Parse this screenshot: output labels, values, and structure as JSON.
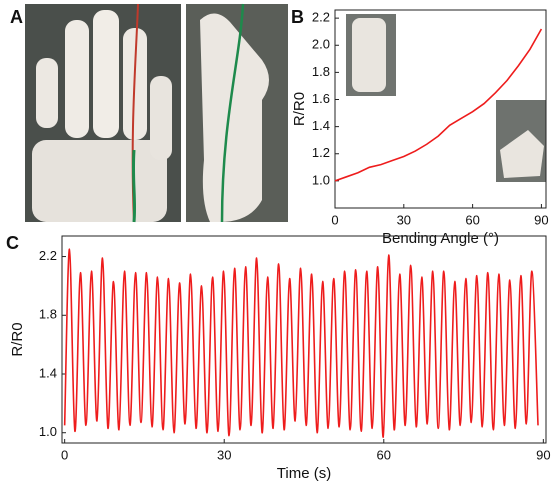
{
  "panel_labels": [
    "A",
    "B",
    "C"
  ],
  "chart_data": [
    {
      "type": "line",
      "x_label": "Bending Angle (°)",
      "y_label": "R/R0",
      "color": "#ee1c1c",
      "x": [
        0,
        5,
        10,
        15,
        20,
        25,
        30,
        35,
        40,
        45,
        50,
        55,
        60,
        65,
        70,
        75,
        80,
        85,
        90
      ],
      "values": [
        1.0,
        1.03,
        1.06,
        1.1,
        1.12,
        1.15,
        1.18,
        1.22,
        1.27,
        1.33,
        1.41,
        1.46,
        1.51,
        1.57,
        1.65,
        1.74,
        1.85,
        1.97,
        2.12
      ],
      "xlim": [
        0,
        92
      ],
      "xticks": [
        0,
        30,
        60,
        90
      ],
      "ylim": [
        0.8,
        2.26
      ],
      "yticks": [
        {
          "value": 1,
          "label": "1.0"
        },
        1.2,
        1.4,
        1.6,
        1.8,
        {
          "value": 2,
          "label": "2.0"
        },
        2.2
      ]
    },
    {
      "type": "line",
      "x_label": "Time (s)",
      "y_label": "R/R0",
      "color": "#ee1c1c",
      "x": [
        0,
        0.9,
        1.93,
        2.97,
        4.0,
        5.04,
        6.07,
        7.11,
        8.14,
        9.18,
        10.21,
        11.25,
        12.28,
        13.32,
        14.35,
        15.39,
        16.42,
        17.46,
        18.49,
        19.53,
        20.56,
        21.6,
        22.63,
        23.67,
        24.7,
        25.74,
        26.77,
        27.81,
        28.84,
        29.88,
        30.91,
        31.95,
        32.98,
        34.02,
        35.05,
        36.09,
        37.12,
        38.16,
        39.19,
        40.23,
        41.26,
        42.3,
        43.33,
        44.37,
        45.4,
        46.44,
        47.47,
        48.51,
        49.54,
        50.58,
        51.61,
        52.65,
        53.68,
        54.72,
        55.75,
        56.79,
        57.82,
        58.86,
        59.89,
        60.93,
        61.96,
        63.0,
        64.03,
        65.07,
        66.1,
        67.14,
        68.17,
        69.21,
        70.24,
        71.28,
        72.31,
        73.35,
        74.38,
        75.42,
        76.45,
        77.49,
        78.52,
        79.56,
        80.59,
        81.63,
        82.66,
        83.7,
        84.73,
        85.77,
        86.8,
        87.84,
        89.0
      ],
      "values": [
        1.05,
        2.25,
        1.01,
        2.09,
        1.05,
        2.1,
        1.08,
        2.19,
        1.03,
        2.03,
        1.02,
        2.1,
        1.05,
        2.09,
        1.07,
        2.09,
        1.04,
        2.06,
        1.02,
        2.05,
        1.0,
        2.02,
        1.06,
        2.08,
        1.03,
        2.0,
        1.0,
        2.06,
        1.01,
        2.1,
        0.98,
        2.12,
        1.02,
        2.13,
        1.05,
        2.19,
        1.0,
        2.06,
        1.03,
        2.15,
        1.02,
        2.05,
        1.08,
        2.12,
        1.05,
        2.08,
        1.0,
        2.03,
        1.03,
        2.05,
        1.04,
        2.1,
        1.02,
        2.11,
        1.01,
        2.1,
        1.03,
        2.13,
        0.97,
        2.21,
        1.02,
        2.08,
        1.05,
        2.14,
        1.04,
        2.06,
        1.06,
        2.1,
        1.03,
        2.1,
        1.02,
        2.03,
        1.05,
        2.05,
        1.07,
        2.07,
        1.04,
        2.09,
        1.02,
        2.08,
        1.05,
        2.04,
        1.03,
        2.07,
        1.06,
        2.1,
        1.05
      ],
      "xlim": [
        -0.5,
        90.5
      ],
      "xticks": [
        0,
        30,
        60,
        90
      ],
      "ylim": [
        0.93,
        2.34
      ],
      "yticks": [
        {
          "value": 1,
          "label": "1.0"
        },
        1.4,
        1.8,
        2.2
      ]
    }
  ]
}
